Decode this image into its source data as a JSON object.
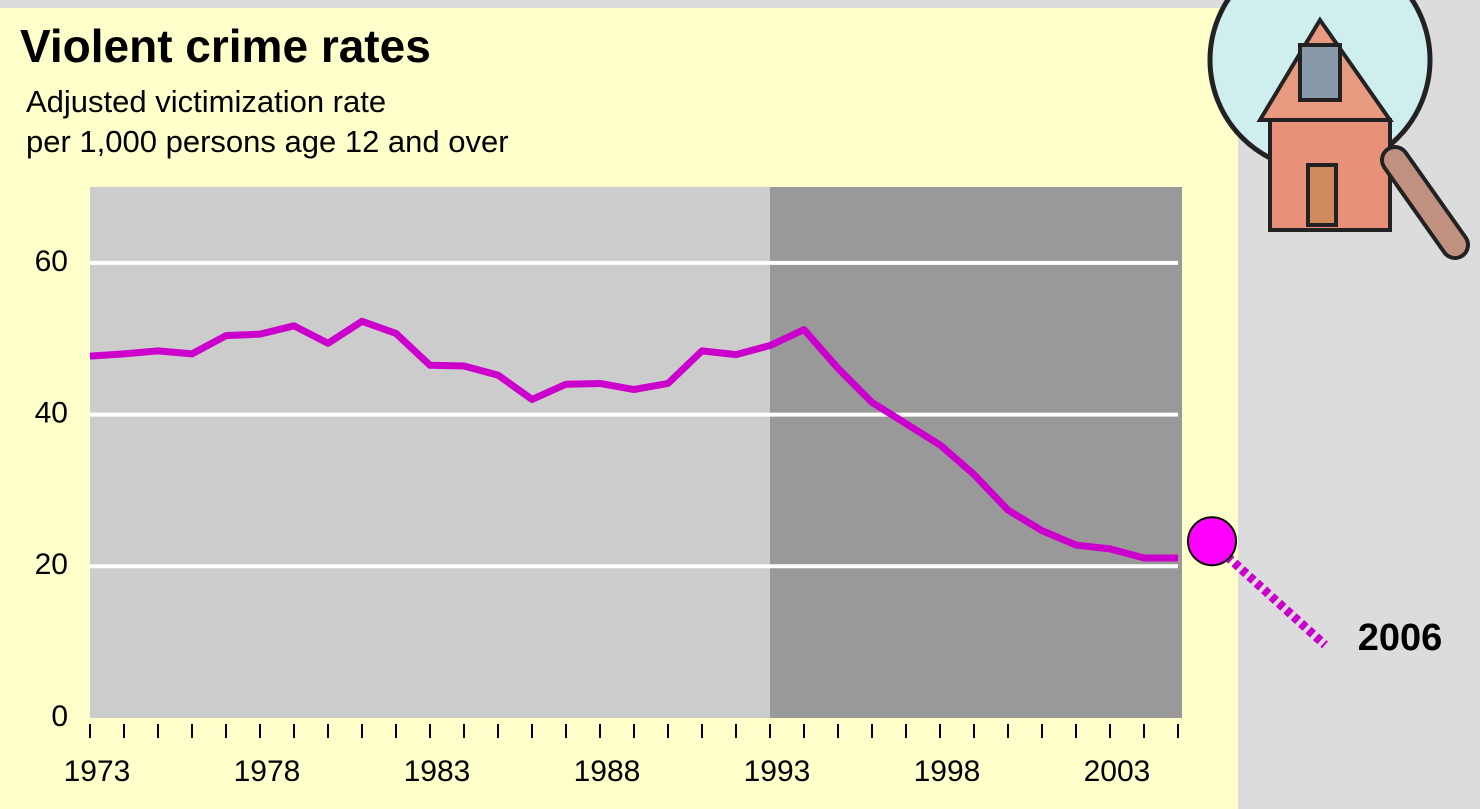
{
  "chart_data": {
    "type": "line",
    "title": "Violent crime rates",
    "subtitle": [
      "Adjusted victimization rate",
      "per 1,000 persons age 12 and over"
    ],
    "x": [
      1973,
      1974,
      1975,
      1976,
      1977,
      1978,
      1979,
      1980,
      1981,
      1982,
      1983,
      1984,
      1985,
      1986,
      1987,
      1988,
      1989,
      1990,
      1991,
      1992,
      1993,
      1994,
      1995,
      1996,
      1997,
      1998,
      1999,
      2000,
      2001,
      2002,
      2003,
      2004,
      2005
    ],
    "values": [
      47.7,
      48.0,
      48.4,
      48.0,
      50.4,
      50.6,
      51.7,
      49.4,
      52.3,
      50.7,
      46.5,
      46.4,
      45.2,
      42.0,
      44.0,
      44.1,
      43.3,
      44.1,
      48.4,
      47.9,
      49.1,
      51.2,
      46.1,
      41.6,
      38.8,
      36.0,
      32.1,
      27.4,
      24.7,
      22.8,
      22.3,
      21.1,
      21.1
    ],
    "color": "#cc00cc",
    "xlim": [
      1973,
      2005
    ],
    "ylim": [
      0,
      70
    ],
    "xticks": [
      1973,
      1978,
      1983,
      1988,
      1993,
      1998,
      2003
    ],
    "yticks": [
      0,
      20,
      40,
      60
    ],
    "grid": true,
    "shaded_range": [
      1993,
      2005
    ],
    "annotation": {
      "label": "2006",
      "x": 2006,
      "value": 23.3
    }
  }
}
